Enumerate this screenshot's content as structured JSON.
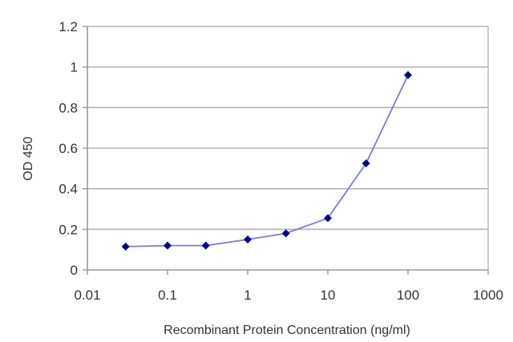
{
  "chart_data": {
    "type": "line",
    "xscale": "log",
    "xlim": [
      0.01,
      1000
    ],
    "ylim": [
      0,
      1.2
    ],
    "grid": {
      "horizontal": true,
      "vertical": false
    },
    "xlabel": "Recombinant Protein Concentration (ng/ml)",
    "ylabel": "OD 450",
    "xticks": [
      "0.01",
      "0.1",
      "1",
      "10",
      "100",
      "1000"
    ],
    "yticks": [
      "0",
      "0.2",
      "0.4",
      "0.6",
      "0.8",
      "1",
      "1.2"
    ],
    "series": [
      {
        "x": [
          0.03,
          0.1,
          0.3,
          1,
          3,
          10,
          30,
          100
        ],
        "y": [
          0.115,
          0.12,
          0.12,
          0.15,
          0.18,
          0.255,
          0.525,
          0.96
        ]
      }
    ]
  },
  "colors": {
    "line": "#7b7bd6",
    "marker": "#00008b",
    "grid": "#b3b3b3",
    "axis": "#999999"
  }
}
